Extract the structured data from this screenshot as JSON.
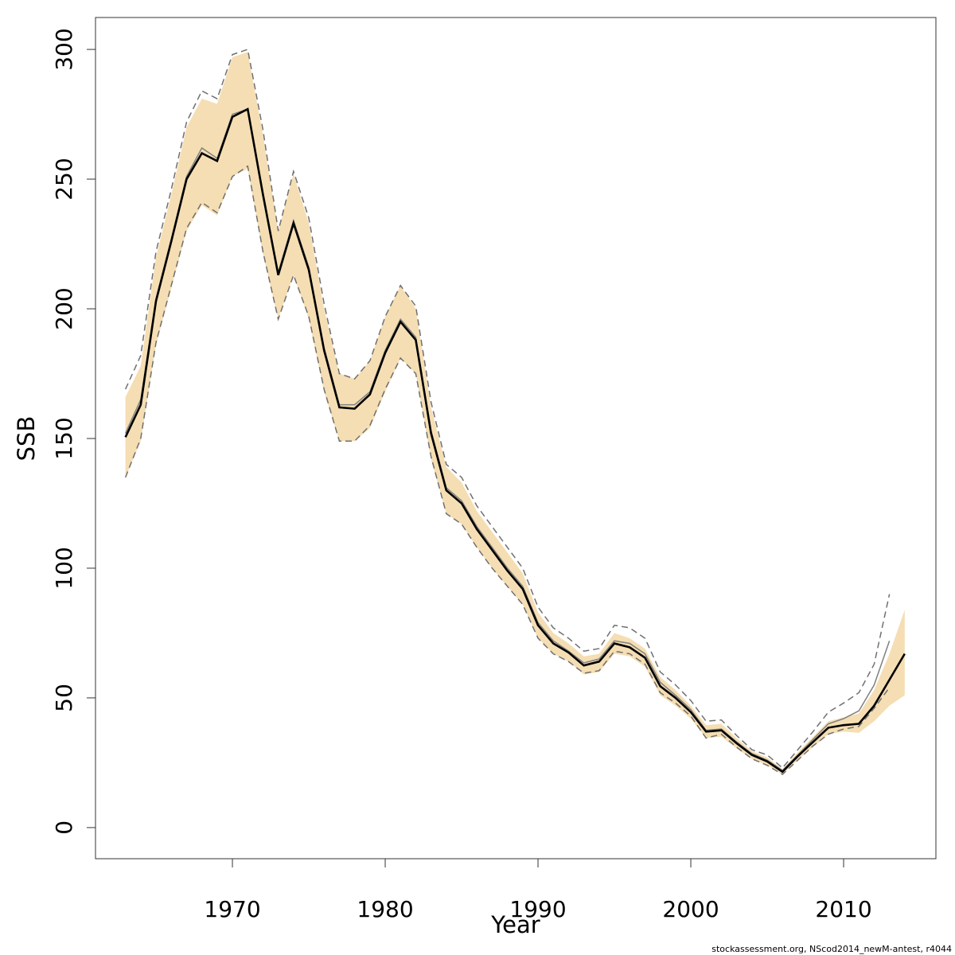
{
  "chart_data": {
    "type": "line",
    "xlabel": "Year",
    "ylabel": "SSB",
    "footnote": "stockassessment.org, NScod2014_newM-antest, r4044",
    "xlim": [
      1961.04,
      2016.04
    ],
    "ylim": [
      -12,
      312.3
    ],
    "xticks": [
      1970,
      1980,
      1990,
      2000,
      2010
    ],
    "yticks": [
      0,
      50,
      100,
      150,
      200,
      250,
      300
    ],
    "x": [
      1963,
      1964,
      1965,
      1966,
      1967,
      1968,
      1969,
      1970,
      1971,
      1972,
      1973,
      1974,
      1975,
      1976,
      1977,
      1978,
      1979,
      1980,
      1981,
      1982,
      1983,
      1984,
      1985,
      1986,
      1987,
      1988,
      1989,
      1990,
      1991,
      1992,
      1993,
      1994,
      1995,
      1996,
      1997,
      1998,
      1999,
      2000,
      2001,
      2002,
      2003,
      2004,
      2005,
      2006,
      2007,
      2008,
      2009,
      2010,
      2011,
      2012,
      2013,
      2014
    ],
    "series": [
      {
        "color": "#000000",
        "band_color": "#f5deb3",
        "line_style": "solid",
        "values": [
          150.5,
          163,
          203,
          226,
          250,
          260,
          257,
          274,
          277,
          244,
          213,
          233,
          215,
          184,
          162,
          161.5,
          167,
          183,
          195,
          188,
          152,
          130,
          125,
          115,
          107,
          99,
          92,
          78,
          71,
          67.5,
          62.5,
          64,
          71,
          69.5,
          65.5,
          54.5,
          50,
          44.5,
          37,
          37.5,
          32.5,
          28,
          25.5,
          21.5,
          27.5,
          33,
          38.5,
          39.5,
          40,
          47,
          57,
          67
        ],
        "lower": [
          135,
          149,
          186,
          208,
          230,
          240,
          236,
          251,
          254,
          221,
          196,
          213,
          196,
          168,
          149,
          149,
          154,
          168,
          181,
          175,
          142,
          121,
          117,
          108,
          100,
          93,
          86,
          73,
          67,
          64,
          59,
          60,
          67,
          66,
          62,
          51,
          47,
          42,
          34.5,
          35,
          30.5,
          26.5,
          24,
          20.5,
          26,
          31,
          36,
          37,
          36.5,
          41,
          47,
          51
        ],
        "upper": [
          166,
          178,
          220,
          244,
          270,
          281,
          279,
          297,
          299,
          267,
          230,
          252,
          233,
          200,
          175,
          173,
          180,
          197,
          209,
          200,
          162,
          139,
          133,
          122,
          114,
          106,
          98,
          83,
          75,
          71,
          66,
          67,
          75,
          73,
          69,
          58,
          53,
          47,
          39.5,
          40,
          34.5,
          29.5,
          27,
          22.5,
          29,
          35,
          41,
          42.5,
          44,
          53,
          67,
          84
        ]
      },
      {
        "color": "#808080",
        "bound_color": "#707070",
        "line_style": "dashed",
        "values": [
          152,
          165,
          204,
          227,
          251,
          262,
          258,
          275,
          277,
          245,
          214,
          234,
          216,
          185,
          163,
          163,
          168,
          184,
          196,
          189,
          153,
          131,
          126,
          116,
          108,
          100,
          93,
          79,
          72,
          68,
          63.5,
          65,
          72,
          71,
          67,
          56,
          51,
          45.5,
          37.5,
          38,
          33,
          28.5,
          26,
          22,
          28,
          34,
          40,
          42,
          45,
          55,
          72,
          null
        ],
        "lower": [
          135,
          150,
          187,
          209,
          231,
          241,
          237,
          251,
          255,
          222,
          196,
          213,
          197,
          169,
          149,
          149,
          155,
          169,
          181,
          175,
          143,
          121,
          117,
          108,
          100,
          93,
          86,
          73,
          67,
          64,
          59.5,
          60.5,
          68,
          67,
          63,
          52,
          48,
          43,
          34.5,
          36,
          31,
          26.5,
          24,
          20.5,
          26,
          31.5,
          36,
          38,
          39,
          46,
          54,
          null
        ],
        "upper": [
          169,
          182,
          222,
          246,
          272,
          284,
          281,
          298,
          300,
          269,
          230,
          253,
          235,
          202,
          175,
          173,
          180,
          197,
          209,
          201,
          164,
          140,
          135,
          124,
          116,
          108,
          100,
          85,
          77,
          73,
          68,
          69,
          78,
          77,
          73,
          60,
          55,
          49,
          41,
          41.5,
          35.5,
          30,
          28,
          23,
          30,
          37,
          44.5,
          48,
          52,
          63,
          90,
          null
        ]
      }
    ]
  }
}
